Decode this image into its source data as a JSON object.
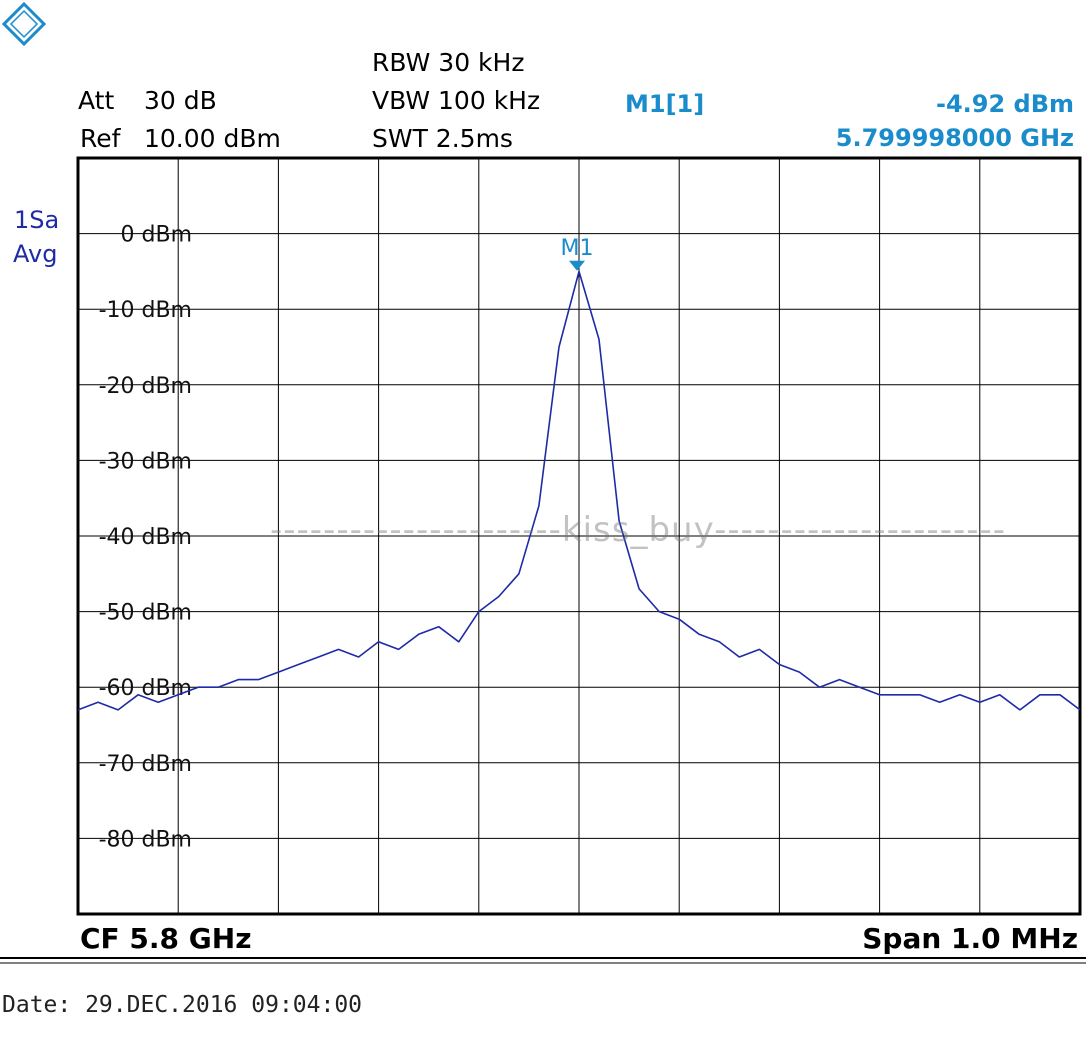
{
  "header": {
    "att_label": "Att",
    "att_value": "30 dB",
    "ref_label": "Ref",
    "ref_value": "10.00 dBm",
    "rbw": "RBW 30 kHz",
    "vbw": "VBW 100 kHz",
    "swt": "SWT 2.5ms",
    "marker_label": "M1[1]",
    "marker_level": "-4.92 dBm",
    "marker_freq": "5.799998000 GHz",
    "trace_mode_1": "1Sa",
    "trace_mode_2": "Avg"
  },
  "footer": {
    "cf": "CF 5.8 GHz",
    "span": "Span 1.0 MHz",
    "date": "Date: 29.DEC.2016  09:04:00"
  },
  "watermark": "----------------------kiss_buy----------------------",
  "colors": {
    "trace": "#1f2aa6",
    "marker": "#1a8ccc",
    "grid": "#000000"
  },
  "chart_data": {
    "type": "line",
    "ylim": [
      -90,
      10
    ],
    "xlim": [
      5799.5,
      5800.5
    ],
    "x_unit": "MHz",
    "yticks": [
      "0 dBm",
      "-10 dBm",
      "-20 dBm",
      "-30 dBm",
      "-40 dBm",
      "-50 dBm",
      "-60 dBm",
      "-70 dBm",
      "-80 dBm"
    ],
    "ytick_values": [
      0,
      -10,
      -20,
      -30,
      -40,
      -50,
      -60,
      -70,
      -80
    ],
    "grid": true,
    "marker": {
      "label": "M1",
      "x": 5799.998,
      "y": -4.92
    },
    "series": [
      {
        "x": [
          5799.5,
          5799.52,
          5799.54,
          5799.56,
          5799.58,
          5799.6,
          5799.62,
          5799.64,
          5799.66,
          5799.68,
          5799.7,
          5799.72,
          5799.74,
          5799.76,
          5799.78,
          5799.8,
          5799.82,
          5799.84,
          5799.86,
          5799.88,
          5799.9,
          5799.92,
          5799.94,
          5799.96,
          5799.98,
          5800.0,
          5800.02,
          5800.04,
          5800.06,
          5800.08,
          5800.1,
          5800.12,
          5800.14,
          5800.16,
          5800.18,
          5800.2,
          5800.22,
          5800.24,
          5800.26,
          5800.28,
          5800.3,
          5800.32,
          5800.34,
          5800.36,
          5800.38,
          5800.4,
          5800.42,
          5800.44,
          5800.46,
          5800.48,
          5800.5
        ],
        "values": [
          -63,
          -62,
          -63,
          -61,
          -62,
          -61,
          -60,
          -60,
          -59,
          -59,
          -58,
          -57,
          -56,
          -55,
          -56,
          -54,
          -55,
          -53,
          -52,
          -54,
          -50,
          -48,
          -45,
          -36,
          -15,
          -5,
          -14,
          -38,
          -47,
          -50,
          -51,
          -53,
          -54,
          -56,
          -55,
          -57,
          -58,
          -60,
          -59,
          -60,
          -61,
          -61,
          -61,
          -62,
          -61,
          -62,
          -61,
          -63,
          -61,
          -61,
          -63
        ]
      }
    ]
  }
}
